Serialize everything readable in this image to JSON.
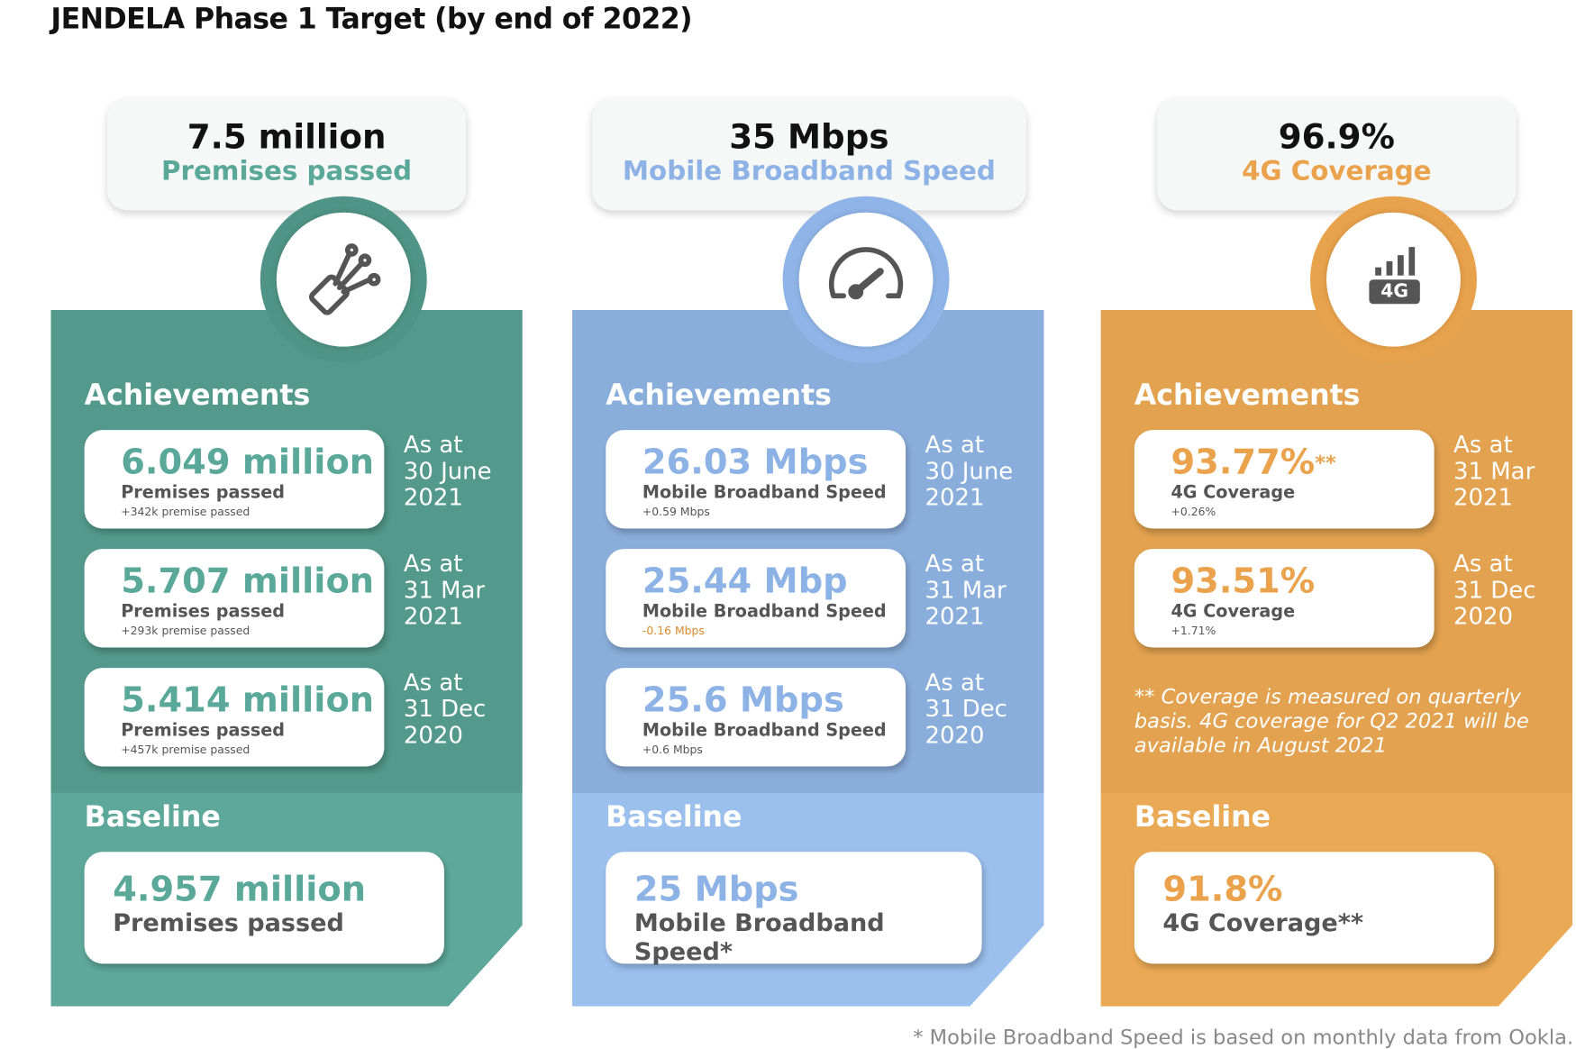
{
  "title": "JENDELA Phase 1 Target (by end of 2022)",
  "columns": [
    {
      "target_value": "7.5 million",
      "target_label": "Premises passed",
      "achievements_heading": "Achievements",
      "items": [
        {
          "value": "6.049 million",
          "label": "Premises passed",
          "change": "+342k premise passed",
          "as_at": [
            "As at",
            "30 June",
            "2021"
          ]
        },
        {
          "value": "5.707 million",
          "label": "Premises passed",
          "change": "+293k premise passed",
          "as_at": [
            "As at",
            "31 Mar",
            "2021"
          ]
        },
        {
          "value": "5.414 million",
          "label": "Premises passed",
          "change": "+457k premise passed",
          "as_at": [
            "As at",
            "31 Dec",
            "2020"
          ]
        }
      ],
      "baseline_heading": "Baseline",
      "baseline_value": "4.957 million",
      "baseline_label": "Premises passed"
    },
    {
      "target_value": "35 Mbps",
      "target_label": "Mobile Broadband Speed",
      "achievements_heading": "Achievements",
      "items": [
        {
          "value": "26.03 Mbps",
          "label": "Mobile Broadband Speed",
          "change": "+0.59 Mbps",
          "as_at": [
            "As at",
            "30 June",
            "2021"
          ]
        },
        {
          "value": "25.44 Mbp",
          "label": "Mobile Broadband Speed",
          "change": "-0.16 Mbps",
          "as_at": [
            "As at",
            "31 Mar",
            "2021"
          ]
        },
        {
          "value": "25.6 Mbps",
          "label": "Mobile Broadband Speed",
          "change": "+0.6 Mbps",
          "as_at": [
            "As at",
            "31 Dec",
            "2020"
          ]
        }
      ],
      "baseline_heading": "Baseline",
      "baseline_value": "25 Mbps",
      "baseline_label": "Mobile Broadband Speed*"
    },
    {
      "target_value": "96.9%",
      "target_label": "4G Coverage",
      "icon_label": "4G",
      "achievements_heading": "Achievements",
      "items": [
        {
          "value": "93.77%",
          "value_mark": "**",
          "label": "4G Coverage",
          "change": "+0.26%",
          "as_at": [
            "As at",
            "31 Mar",
            "2021"
          ]
        },
        {
          "value": "93.51%",
          "label": "4G Coverage",
          "change": "+1.71%",
          "as_at": [
            "As at",
            "31 Dec",
            "2020"
          ]
        }
      ],
      "note": "** Coverage is measured on quarterly basis. 4G coverage for Q2 2021 will be available in August 2021",
      "baseline_heading": "Baseline",
      "baseline_value": "91.8%",
      "baseline_label": "4G Coverage**"
    }
  ],
  "footnote": "* Mobile Broadband Speed is based on monthly data from Ookla."
}
